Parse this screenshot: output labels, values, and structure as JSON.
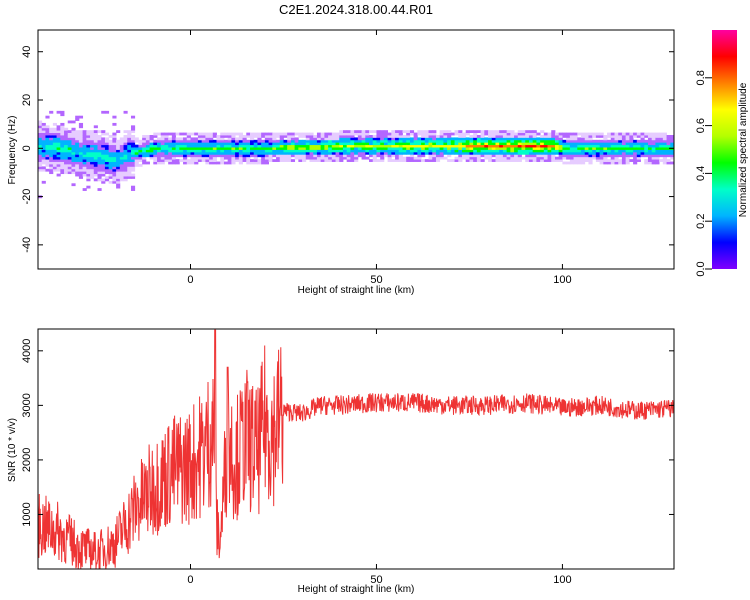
{
  "title": "C2E1.2024.318.00.44.R01",
  "chart_data": [
    {
      "type": "heatmap",
      "xlabel": "Height of straight line (km)",
      "ylabel": "Frequency (Hz)",
      "xlim": [
        -41,
        130
      ],
      "ylim": [
        -50,
        49
      ],
      "x_ticks": [
        0,
        50,
        100
      ],
      "y_ticks": [
        -40,
        -20,
        0,
        20,
        40
      ],
      "colorbar": {
        "label": "Normalized spectral amplitude",
        "range": [
          0,
          1
        ],
        "ticks": [
          "0.0",
          "0.2",
          "0.4",
          "0.6",
          "0.8"
        ],
        "colormap": [
          "#8000ff",
          "#0000ff",
          "#00b4ff",
          "#00ffc8",
          "#00ff00",
          "#b4ff00",
          "#ffff00",
          "#ff8000",
          "#ff0000",
          "#ff00a0"
        ]
      },
      "ridge": {
        "x": [
          -41,
          -35,
          -30,
          -25,
          -20,
          -17,
          -10,
          0,
          10,
          20,
          40,
          60,
          80,
          90,
          97,
          100,
          110,
          130
        ],
        "center_hz": [
          1,
          0,
          -2,
          -3,
          -5,
          -2,
          0,
          0,
          0,
          0,
          1,
          1,
          1,
          1,
          1,
          0,
          0,
          0
        ],
        "amplitude": [
          0.3,
          0.35,
          0.3,
          0.35,
          0.3,
          0.3,
          0.4,
          0.45,
          0.45,
          0.45,
          0.55,
          0.6,
          0.8,
          0.85,
          0.75,
          0.45,
          0.45,
          0.4
        ]
      }
    },
    {
      "type": "line",
      "xlabel": "Height of straight line (km)",
      "ylabel": "SNR (10 * v/v)",
      "xlim": [
        -41,
        130
      ],
      "ylim": [
        0,
        4400
      ],
      "x_ticks": [
        0,
        50,
        100
      ],
      "y_ticks": [
        1000,
        2000,
        3000,
        4000
      ],
      "color": "#ee3333",
      "series": [
        {
          "x": [
            -41,
            -36,
            -30,
            -25,
            -20,
            -15,
            -10,
            -5,
            0,
            4,
            6,
            7,
            8,
            10,
            12,
            15,
            18,
            20,
            22,
            25,
            30,
            35,
            40,
            50,
            60,
            70,
            80,
            90,
            100,
            110,
            120,
            130
          ],
          "y": [
            800,
            700,
            400,
            300,
            500,
            1100,
            1500,
            1800,
            1900,
            2200,
            2600,
            800,
            500,
            2500,
            2000,
            2400,
            2100,
            2700,
            2500,
            2900,
            2850,
            3000,
            3000,
            3050,
            3050,
            3000,
            3000,
            3050,
            2950,
            3000,
            2900,
            2950
          ]
        }
      ]
    }
  ]
}
